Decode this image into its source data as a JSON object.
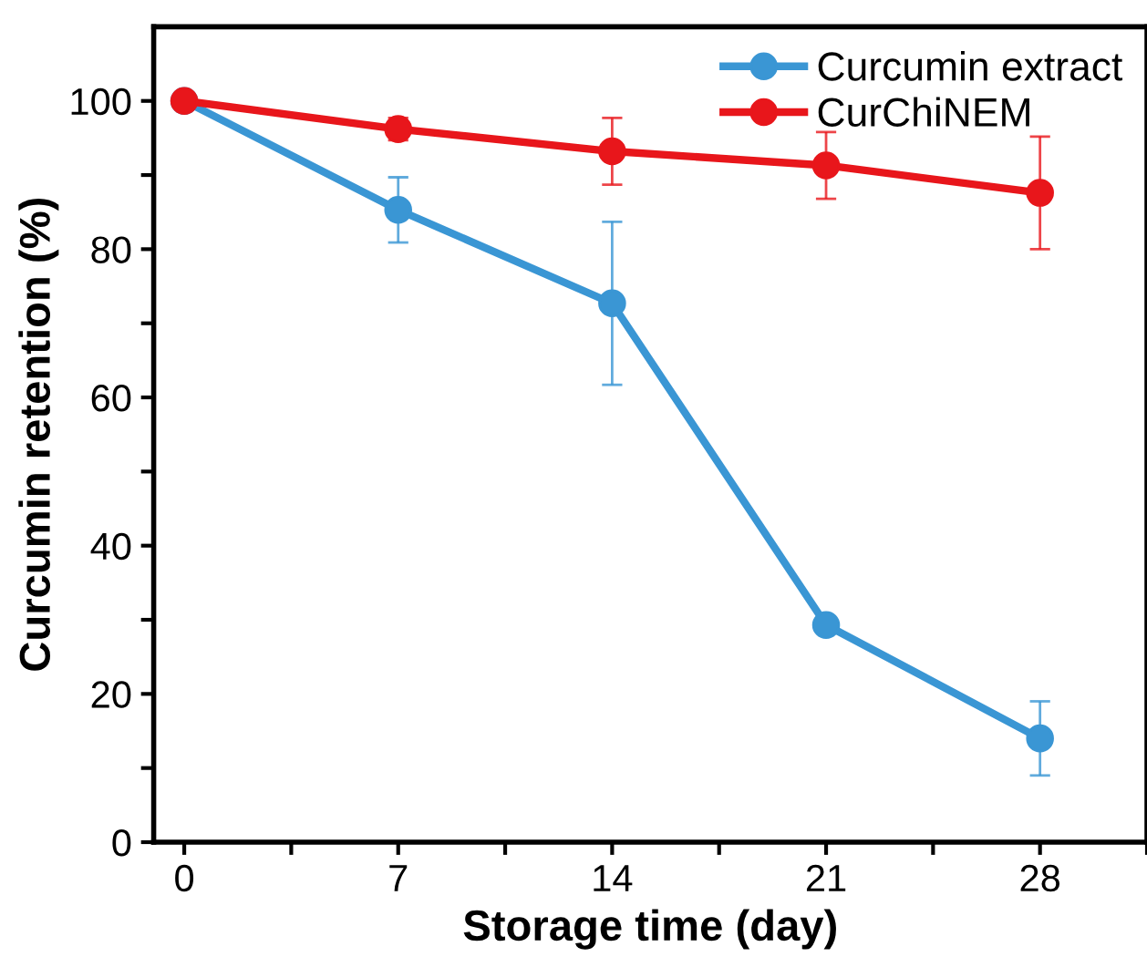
{
  "chart_data": {
    "type": "line",
    "xlabel": "Storage time (day)",
    "ylabel": "Curcumin retention (%)",
    "x": [
      0,
      7,
      14,
      21,
      28
    ],
    "series": [
      {
        "name": "Curcumin extract",
        "color": "#3a96d4",
        "values": [
          100,
          85.3,
          72.7,
          29.3,
          14
        ],
        "errors": [
          null,
          4.4,
          11,
          null,
          5
        ]
      },
      {
        "name": "CurChiNEM",
        "color": "#e8161b",
        "values": [
          100,
          96.2,
          93.2,
          91.3,
          87.6
        ],
        "errors": [
          null,
          1.5,
          4.5,
          4.5,
          7.6
        ]
      }
    ],
    "xlim": [
      -1,
      31.5
    ],
    "ylim": [
      0,
      110
    ],
    "xticks": [
      0,
      {
        "value": 3.5,
        "label": null
      },
      7,
      {
        "value": 10.5,
        "label": null
      },
      14,
      {
        "value": 17.5,
        "label": null
      },
      21,
      {
        "value": 24.5,
        "label": null
      },
      28,
      {
        "value": 31.5,
        "label": null
      }
    ],
    "yticks": [
      0,
      {
        "value": 10,
        "label": null
      },
      20,
      {
        "value": 30,
        "label": null
      },
      40,
      {
        "value": 50,
        "label": null
      },
      60,
      {
        "value": 70,
        "label": null
      },
      80,
      {
        "value": 90,
        "label": null
      },
      100
    ],
    "marker": "circle",
    "line_style": "solid",
    "grid": false,
    "legend": "top right"
  }
}
